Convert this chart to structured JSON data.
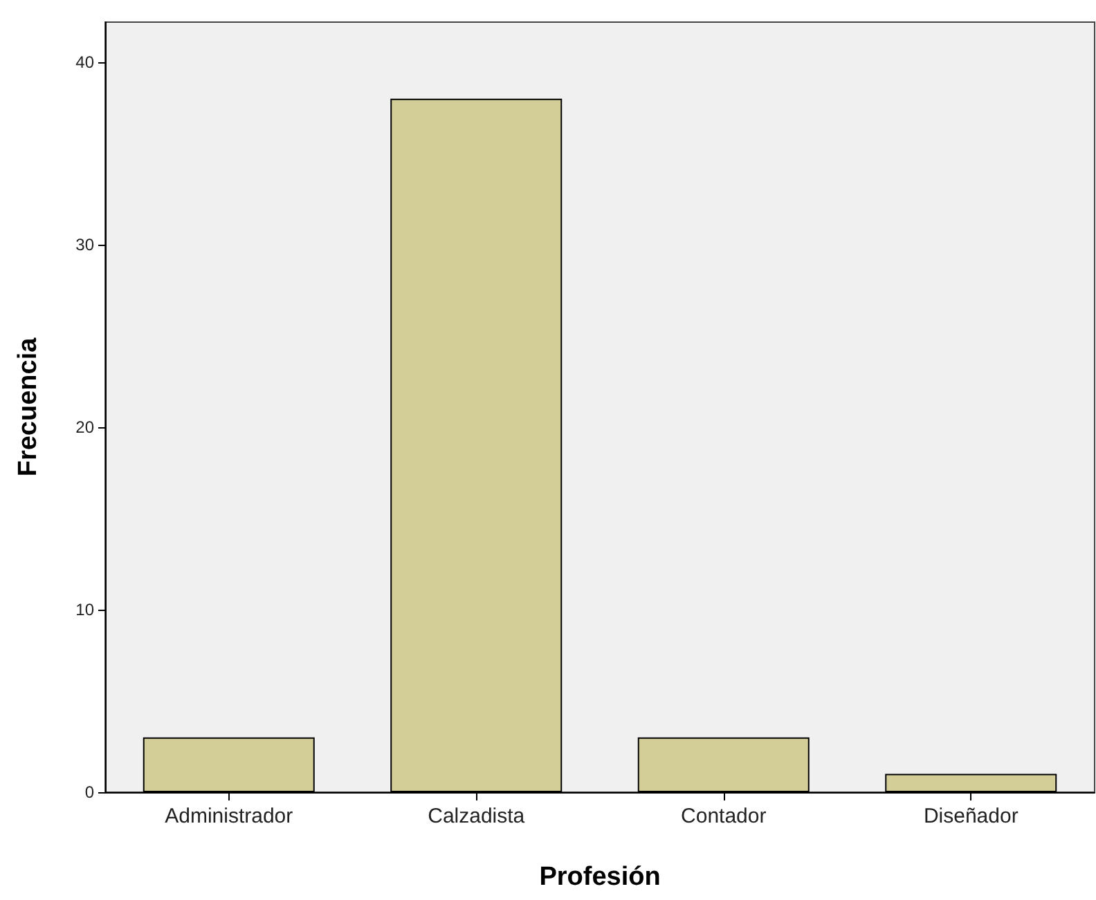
{
  "chart_data": {
    "type": "bar",
    "xlabel": "Profesión",
    "ylabel": "Frecuencia",
    "categories": [
      "Administrador",
      "Calzadista",
      "Contador",
      "Diseñador"
    ],
    "values": [
      3,
      38,
      3,
      1
    ],
    "color": "#d3ce97",
    "ylim": [
      0,
      42.2
    ],
    "yticks": [
      0,
      10,
      20,
      30,
      40
    ],
    "grid": false
  }
}
